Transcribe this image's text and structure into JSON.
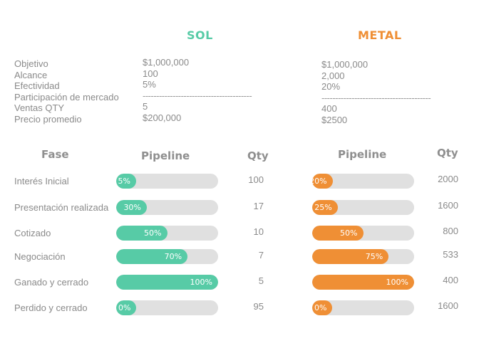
{
  "brands": {
    "sol": "SOL",
    "metal": "METAL"
  },
  "colors": {
    "sol": "#57cba6",
    "metal": "#ef8f35",
    "track": "#e0e0e0",
    "text": "#8a8a8a"
  },
  "summary": {
    "labels": [
      "Objetivo",
      "Alcance",
      "Efectividad",
      "Participación de mercado",
      "Ventas QTY",
      "Precio promedio"
    ],
    "sol": [
      "$1,000,000",
      "100",
      "5%",
      "----------------------------------------",
      "5",
      "$200,000"
    ],
    "metal": [
      "$1,000,000",
      "2,000",
      "20%",
      "----------------------------------------",
      "400",
      "$2500"
    ]
  },
  "headers": {
    "fase": "Fase",
    "pipeline_sol": "Pipeline",
    "qty_sol": "Qty",
    "pipeline_metal": "Pipeline",
    "qty_metal": "Qty"
  },
  "stages": [
    {
      "name": "Interés Inicial",
      "sol": {
        "pct": "5%",
        "value": 5,
        "qty": "100"
      },
      "metal": {
        "pct": "20%",
        "value": 20,
        "qty": "2000"
      }
    },
    {
      "name": "Presentación realizada",
      "sol": {
        "pct": "30%",
        "value": 30,
        "qty": "17"
      },
      "metal": {
        "pct": "25%",
        "value": 25,
        "qty": "1600"
      }
    },
    {
      "name": "Cotizado",
      "sol": {
        "pct": "50%",
        "value": 50,
        "qty": "10"
      },
      "metal": {
        "pct": "50%",
        "value": 50,
        "qty": "800"
      }
    },
    {
      "name": "Negociación",
      "sol": {
        "pct": "70%",
        "value": 70,
        "qty": "7"
      },
      "metal": {
        "pct": "75%",
        "value": 75,
        "qty": "533"
      }
    },
    {
      "name": "Ganado y cerrado",
      "sol": {
        "pct": "100%",
        "value": 100,
        "qty": "5"
      },
      "metal": {
        "pct": "100%",
        "value": 100,
        "qty": "400"
      }
    },
    {
      "name": "Perdido y cerrado",
      "sol": {
        "pct": "0%",
        "value": 0,
        "qty": "95"
      },
      "metal": {
        "pct": "0%",
        "value": 0,
        "qty": "1600"
      }
    }
  ]
}
